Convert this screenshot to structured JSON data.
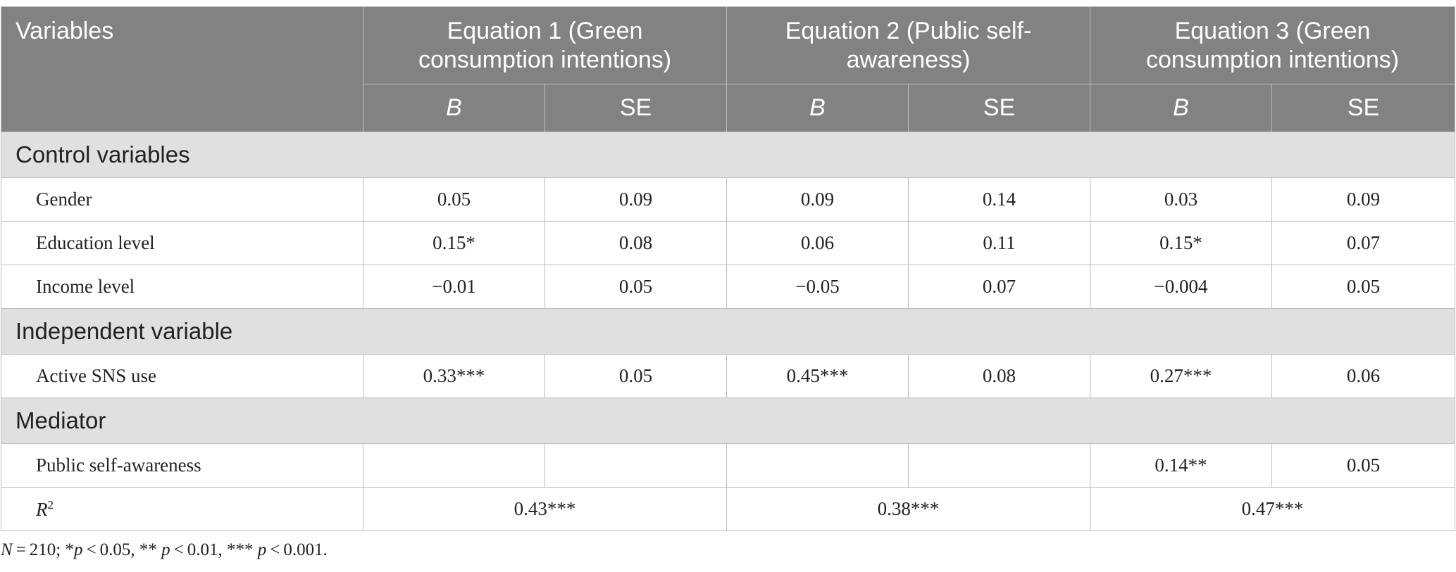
{
  "table": {
    "header": {
      "variables": "Variables",
      "equations": [
        "Equation 1 (Green consumption intentions)",
        "Equation 2 (Public self-awareness)",
        "Equation 3 (Green consumption intentions)"
      ],
      "sub": [
        "B",
        "SE",
        "B",
        "SE",
        "B",
        "SE"
      ]
    },
    "sections": [
      {
        "title": "Control variables",
        "rows": [
          {
            "label": "Gender",
            "values": [
              "0.05",
              "0.09",
              "0.09",
              "0.14",
              "0.03",
              "0.09"
            ]
          },
          {
            "label": "Education level",
            "values": [
              "0.15*",
              "0.08",
              "0.06",
              "0.11",
              "0.15*",
              "0.07"
            ]
          },
          {
            "label": "Income level",
            "values": [
              "−0.01",
              "0.05",
              "−0.05",
              "0.07",
              "−0.004",
              "0.05"
            ]
          }
        ]
      },
      {
        "title": "Independent variable",
        "rows": [
          {
            "label": "Active SNS use",
            "values": [
              "0.33***",
              "0.05",
              "0.45***",
              "0.08",
              "0.27***",
              "0.06"
            ]
          }
        ]
      },
      {
        "title": "Mediator",
        "rows": [
          {
            "label": "Public self-awareness",
            "values": [
              "",
              "",
              "",
              "",
              "0.14**",
              "0.05"
            ]
          }
        ]
      }
    ],
    "r2": {
      "label_main": "R",
      "label_sup": "2",
      "values": [
        "0.43***",
        "0.38***",
        "0.47***"
      ]
    }
  },
  "note": {
    "n_italic": "N",
    "n_rest": " = 210; *",
    "p1": "p",
    "t1": " < 0.05, ** ",
    "p2": "p",
    "t2": " < 0.01, *** ",
    "p3": "p",
    "t3": " < 0.001."
  }
}
